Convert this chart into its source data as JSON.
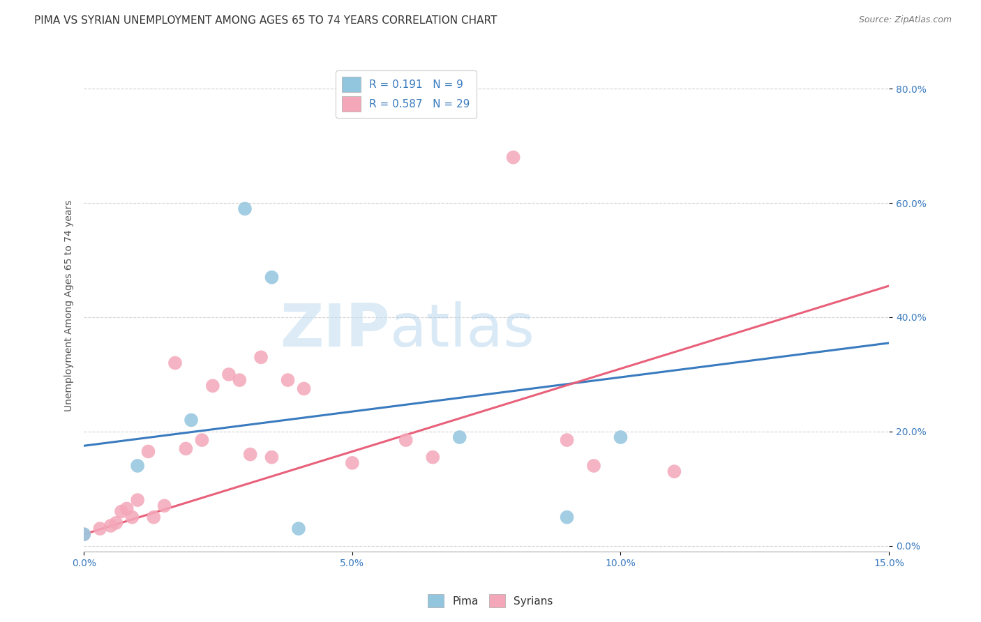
{
  "title": "PIMA VS SYRIAN UNEMPLOYMENT AMONG AGES 65 TO 74 YEARS CORRELATION CHART",
  "source": "Source: ZipAtlas.com",
  "ylabel": "Unemployment Among Ages 65 to 74 years",
  "xticklabels": [
    "0.0%",
    "5.0%",
    "10.0%",
    "15.0%"
  ],
  "yticklabels": [
    "0.0%",
    "20.0%",
    "40.0%",
    "60.0%",
    "80.0%"
  ],
  "xlim": [
    0.0,
    0.15
  ],
  "ylim": [
    -0.01,
    0.85
  ],
  "pima_color": "#92c5de",
  "syrians_color": "#f4a7b9",
  "pima_line_color": "#3a7bbf",
  "syrians_line_color": "#e8607a",
  "pima_R": 0.191,
  "pima_N": 9,
  "syrians_R": 0.587,
  "syrians_N": 29,
  "pima_x": [
    0.0,
    0.01,
    0.02,
    0.03,
    0.035,
    0.04,
    0.07,
    0.09,
    0.1
  ],
  "pima_y": [
    0.02,
    0.14,
    0.22,
    0.59,
    0.47,
    0.03,
    0.19,
    0.05,
    0.19
  ],
  "syrians_x": [
    0.0,
    0.003,
    0.005,
    0.006,
    0.007,
    0.008,
    0.009,
    0.01,
    0.012,
    0.013,
    0.015,
    0.017,
    0.019,
    0.022,
    0.024,
    0.027,
    0.029,
    0.031,
    0.033,
    0.035,
    0.038,
    0.041,
    0.05,
    0.06,
    0.065,
    0.08,
    0.09,
    0.095,
    0.11
  ],
  "syrians_y": [
    0.02,
    0.03,
    0.035,
    0.04,
    0.06,
    0.065,
    0.05,
    0.08,
    0.165,
    0.05,
    0.07,
    0.32,
    0.17,
    0.185,
    0.28,
    0.3,
    0.29,
    0.16,
    0.33,
    0.155,
    0.29,
    0.275,
    0.145,
    0.185,
    0.155,
    0.68,
    0.185,
    0.14,
    0.13
  ],
  "pima_line_y0": 0.175,
  "pima_line_y1": 0.355,
  "syrians_line_y0": 0.02,
  "syrians_line_y1": 0.455,
  "watermark_zip": "ZIP",
  "watermark_atlas": "atlas",
  "background_color": "#ffffff",
  "grid_color": "#cccccc",
  "title_fontsize": 11,
  "axis_fontsize": 10,
  "tick_fontsize": 10,
  "legend_fontsize": 11
}
